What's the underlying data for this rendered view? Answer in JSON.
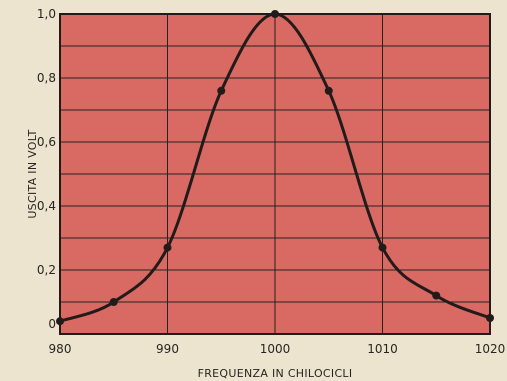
{
  "chart_data": {
    "type": "line",
    "xlabel": "FREQUENZA IN CHILOCICLI",
    "ylabel": "USCITA IN VOLT",
    "xlim": [
      980,
      1020
    ],
    "ylim": [
      0,
      1.0
    ],
    "x_ticks": [
      980,
      990,
      1000,
      1010,
      1020
    ],
    "x_tick_labels": [
      "980",
      "990",
      "1000",
      "1010",
      "1020"
    ],
    "y_ticks": [
      0,
      0.2,
      0.4,
      0.6,
      0.8,
      1.0
    ],
    "y_tick_labels": [
      "0",
      "0,2",
      "0,4",
      "0,6",
      "0,8",
      "1,0"
    ],
    "grid": true,
    "series": [
      {
        "x": [
          980,
          985,
          990,
          995,
          1000,
          1005,
          1010,
          1015,
          1020
        ],
        "y": [
          0.04,
          0.1,
          0.27,
          0.76,
          1.0,
          0.76,
          0.27,
          0.12,
          0.05
        ]
      }
    ],
    "colors": {
      "plot_background": "#d96a63",
      "grid": "#2b1e1e",
      "line": "#231a1a",
      "paper": "#ece4cf"
    }
  }
}
